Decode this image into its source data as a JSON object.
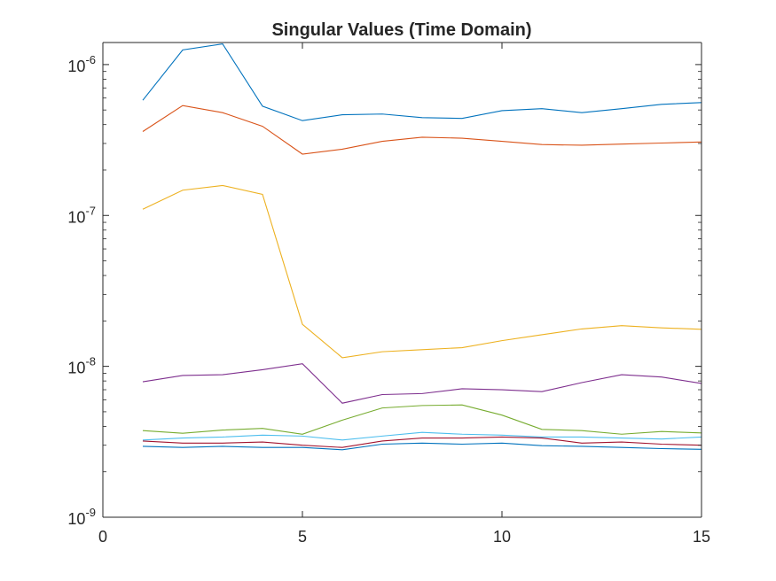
{
  "chart_data": {
    "type": "line",
    "title": "Singular Values (Time Domain)",
    "xlabel": "",
    "ylabel": "",
    "xlim": [
      0,
      15
    ],
    "ylim": [
      1e-09,
      1.4e-06
    ],
    "yscale": "log",
    "grid": false,
    "legend": "none",
    "xticks": [
      0,
      5,
      10,
      15
    ],
    "xtick_labels": [
      "0",
      "5",
      "10",
      "15"
    ],
    "yticks": [
      1e-09,
      1e-08,
      1e-07,
      1e-06
    ],
    "ytick_labels": [
      {
        "base": "10",
        "exp": "-9"
      },
      {
        "base": "10",
        "exp": "-8"
      },
      {
        "base": "10",
        "exp": "-7"
      },
      {
        "base": "10",
        "exp": "-6"
      }
    ],
    "x": [
      1,
      2,
      3,
      4,
      5,
      6,
      7,
      8,
      9,
      10,
      11,
      12,
      13,
      14,
      15
    ],
    "series": [
      {
        "color": "#0072BD",
        "values": [
          5.8e-07,
          1.25e-06,
          1.37e-06,
          5.3e-07,
          4.25e-07,
          4.65e-07,
          4.7e-07,
          4.45e-07,
          4.4e-07,
          4.95e-07,
          5.1e-07,
          4.8e-07,
          5.1e-07,
          5.45e-07,
          5.6e-07
        ]
      },
      {
        "color": "#D95319",
        "values": [
          3.6e-07,
          5.35e-07,
          4.8e-07,
          3.9e-07,
          2.55e-07,
          2.75e-07,
          3.1e-07,
          3.3e-07,
          3.25e-07,
          3.1e-07,
          2.95e-07,
          2.92e-07,
          2.97e-07,
          3.02e-07,
          3.07e-07
        ]
      },
      {
        "color": "#EDB120",
        "values": [
          1.1e-07,
          1.47e-07,
          1.58e-07,
          1.38e-07,
          1.9e-08,
          1.14e-08,
          1.25e-08,
          1.29e-08,
          1.33e-08,
          1.48e-08,
          1.62e-08,
          1.77e-08,
          1.86e-08,
          1.8e-08,
          1.76e-08
        ]
      },
      {
        "color": "#7E2F8E",
        "values": [
          7.9e-09,
          8.7e-09,
          8.8e-09,
          9.5e-09,
          1.04e-08,
          5.7e-09,
          6.5e-09,
          6.6e-09,
          7.1e-09,
          7e-09,
          6.8e-09,
          7.8e-09,
          8.8e-09,
          8.5e-09,
          7.7e-09
        ]
      },
      {
        "color": "#77AC30",
        "values": [
          3.75e-09,
          3.6e-09,
          3.78e-09,
          3.88e-09,
          3.55e-09,
          4.4e-09,
          5.3e-09,
          5.5e-09,
          5.55e-09,
          4.75e-09,
          3.82e-09,
          3.75e-09,
          3.55e-09,
          3.7e-09,
          3.62e-09
        ]
      },
      {
        "color": "#4DBEEE",
        "values": [
          3.25e-09,
          3.35e-09,
          3.4e-09,
          3.5e-09,
          3.45e-09,
          3.25e-09,
          3.45e-09,
          3.65e-09,
          3.55e-09,
          3.5e-09,
          3.4e-09,
          3.4e-09,
          3.35e-09,
          3.3e-09,
          3.4e-09
        ]
      },
      {
        "color": "#A2142F",
        "values": [
          3.2e-09,
          3.1e-09,
          3.1e-09,
          3.15e-09,
          3e-09,
          2.9e-09,
          3.2e-09,
          3.35e-09,
          3.35e-09,
          3.4e-09,
          3.35e-09,
          3.1e-09,
          3.15e-09,
          3.05e-09,
          3e-09
        ]
      },
      {
        "color": "#0072BD",
        "values": [
          2.95e-09,
          2.9e-09,
          2.95e-09,
          2.9e-09,
          2.9e-09,
          2.8e-09,
          3.05e-09,
          3.1e-09,
          3.05e-09,
          3.1e-09,
          2.98e-09,
          2.95e-09,
          2.9e-09,
          2.85e-09,
          2.82e-09
        ]
      }
    ]
  }
}
